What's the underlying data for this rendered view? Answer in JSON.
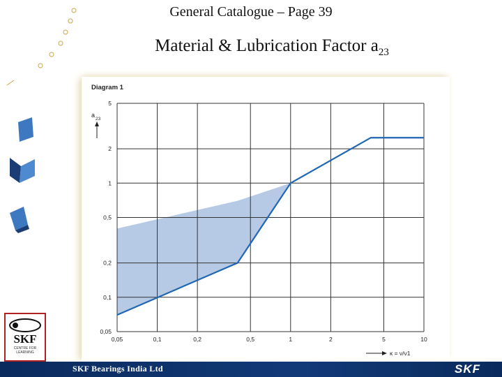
{
  "page": {
    "header": "General Catalogue – Page 39",
    "title_main": "Material & Lubrication Factor  a",
    "title_sub": "23",
    "footer_left": "SKF Bearings India Ltd",
    "footer_brand": "SKF",
    "logo_main": "SKF",
    "logo_sub_1": "CENTRE FOR",
    "logo_sub_2": "LEARNING"
  },
  "colors": {
    "band": "#a9bfe0",
    "line": "#1f66b3",
    "footer": "#0a2a5c"
  },
  "chart_data": {
    "type": "line",
    "title": "Diagram 1",
    "xlabel": "κ = ν/ν1",
    "ylabel": "a23",
    "x_scale": "log",
    "y_scale": "log",
    "xlim": [
      0.05,
      10
    ],
    "ylim": [
      0.05,
      5
    ],
    "x_ticks": [
      0.05,
      0.1,
      0.2,
      0.5,
      1,
      2,
      5,
      10
    ],
    "x_tick_labels": [
      "0,05",
      "0,1",
      "0,2",
      "0,5",
      "1",
      "2",
      "5",
      "10"
    ],
    "y_ticks": [
      0.05,
      0.1,
      0.2,
      0.5,
      1,
      2,
      5
    ],
    "y_tick_labels": [
      "0,05",
      "0,1",
      "0,2",
      "0,5",
      "1",
      "2",
      "5"
    ],
    "grid": true,
    "series": [
      {
        "x": [
          0.05,
          0.4,
          1,
          4,
          10
        ],
        "y": [
          0.07,
          0.2,
          1,
          2.5,
          2.5
        ]
      }
    ],
    "band": {
      "upper": {
        "x": [
          0.05,
          0.4,
          1
        ],
        "y": [
          0.4,
          0.7,
          1
        ]
      },
      "lower": {
        "x": [
          0.05,
          0.4,
          1
        ],
        "y": [
          0.07,
          0.2,
          1
        ]
      }
    }
  }
}
